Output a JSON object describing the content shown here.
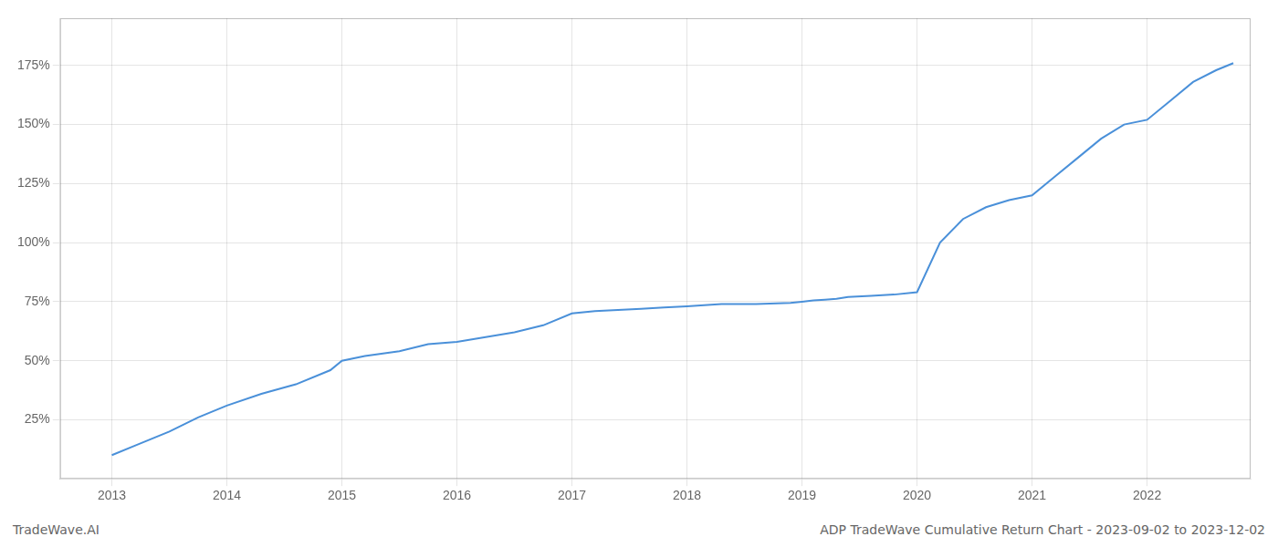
{
  "chart_data": {
    "type": "line",
    "title": "ADP TradeWave Cumulative Return Chart - 2023-09-02 to 2023-12-02",
    "subtitle": "TradeWave.AI",
    "x": [
      2013.0,
      2013.2,
      2013.5,
      2013.75,
      2014.0,
      2014.3,
      2014.6,
      2014.9,
      2015.0,
      2015.2,
      2015.5,
      2015.75,
      2016.0,
      2016.25,
      2016.5,
      2016.75,
      2017.0,
      2017.2,
      2017.4,
      2017.6,
      2017.8,
      2018.0,
      2018.3,
      2018.6,
      2018.9,
      2019.0,
      2019.1,
      2019.2,
      2019.3,
      2019.4,
      2019.6,
      2019.8,
      2020.0,
      2020.2,
      2020.4,
      2020.6,
      2020.8,
      2021.0,
      2021.2,
      2021.4,
      2021.6,
      2021.8,
      2022.0,
      2022.2,
      2022.4,
      2022.6,
      2022.75
    ],
    "values": [
      0.1,
      0.14,
      0.2,
      0.26,
      0.31,
      0.36,
      0.4,
      0.46,
      0.5,
      0.52,
      0.54,
      0.57,
      0.58,
      0.6,
      0.62,
      0.65,
      0.7,
      0.71,
      0.715,
      0.72,
      0.725,
      0.73,
      0.74,
      0.74,
      0.745,
      0.75,
      0.755,
      0.758,
      0.762,
      0.77,
      0.775,
      0.78,
      0.79,
      1.0,
      1.1,
      1.15,
      1.18,
      1.2,
      1.28,
      1.36,
      1.44,
      1.5,
      1.52,
      1.6,
      1.68,
      1.73,
      1.76
    ],
    "color": "#4a90d9",
    "xlim": [
      2012.55,
      2022.9
    ],
    "xticks": [
      2013,
      2014,
      2015,
      2016,
      2017,
      2018,
      2019,
      2020,
      2021,
      2022
    ],
    "ylim": [
      0.0,
      1.95
    ],
    "yticks": [
      {
        "value": 0.25,
        "label": "25%"
      },
      {
        "value": 0.5,
        "label": "50%"
      },
      {
        "value": 0.75,
        "label": "75%"
      },
      {
        "value": 1.0,
        "label": "100%"
      },
      {
        "value": 1.25,
        "label": "125%"
      },
      {
        "value": 1.5,
        "label": "150%"
      },
      {
        "value": 1.75,
        "label": "175%"
      }
    ],
    "grid": true
  }
}
